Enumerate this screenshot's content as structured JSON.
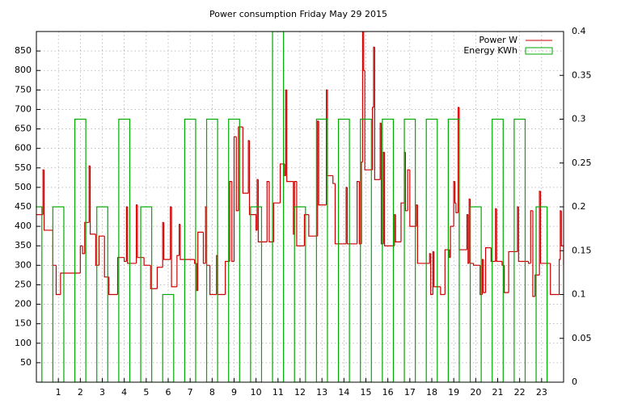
{
  "chart_data": {
    "type": "step",
    "title": "Power consumption Friday May 29 2015",
    "xlim": [
      0,
      24
    ],
    "xticks": [
      1,
      2,
      3,
      4,
      5,
      6,
      7,
      8,
      9,
      10,
      11,
      12,
      13,
      14,
      15,
      16,
      17,
      18,
      19,
      20,
      21,
      22,
      23
    ],
    "ylim": [
      0,
      900
    ],
    "yticks": [
      50,
      100,
      150,
      200,
      250,
      300,
      350,
      400,
      450,
      500,
      550,
      600,
      650,
      700,
      750,
      800,
      850
    ],
    "y2lim": [
      0,
      0.4
    ],
    "y2ticks": [
      0,
      0.05,
      0.1,
      0.15,
      0.2,
      0.25,
      0.3,
      0.35,
      0.4
    ],
    "grid": true,
    "legend": "top-right",
    "series": [
      {
        "name": "Power W",
        "color": "#cc0000",
        "style": "steps",
        "x": [
          0,
          0.3,
          0.35,
          0.75,
          0.9,
          1.1,
          2.0,
          2.1,
          2.2,
          2.4,
          2.45,
          2.7,
          2.85,
          3.1,
          3.3,
          3.7,
          4.0,
          4.1,
          4.15,
          4.55,
          4.6,
          4.9,
          5.2,
          5.5,
          5.75,
          5.8,
          6.1,
          6.15,
          6.4,
          6.5,
          6.55,
          7.2,
          7.3,
          7.35,
          7.6,
          7.7,
          7.75,
          7.9,
          8.2,
          8.25,
          8.6,
          8.8,
          8.9,
          9.0,
          9.1,
          9.2,
          9.4,
          9.65,
          9.7,
          10.0,
          10.05,
          10.1,
          10.5,
          10.6,
          10.8,
          11.1,
          11.3,
          11.35,
          11.4,
          11.7,
          11.75,
          11.85,
          12.2,
          12.4,
          12.8,
          12.85,
          13.2,
          13.25,
          13.5,
          13.6,
          14.1,
          14.15,
          14.6,
          14.7,
          14.8,
          14.85,
          14.9,
          14.95,
          15.3,
          15.35,
          15.4,
          15.65,
          15.7,
          15.8,
          15.85,
          16.3,
          16.35,
          16.6,
          16.75,
          16.8,
          16.9,
          17.0,
          17.3,
          17.35,
          17.9,
          17.95,
          18.05,
          18.1,
          18.4,
          18.6,
          18.8,
          18.85,
          19.0,
          19.05,
          19.1,
          19.2,
          19.25,
          19.6,
          19.65,
          19.7,
          19.75,
          19.9,
          20.2,
          20.3,
          20.35,
          20.45,
          20.7,
          20.9,
          20.95,
          21.2,
          21.3,
          21.5,
          21.9,
          21.95,
          22.4,
          22.5,
          22.6,
          22.7,
          22.9,
          22.95,
          23.4,
          23.8,
          23.85,
          23.9,
          24
        ],
        "values": [
          430,
          545,
          390,
          300,
          225,
          280,
          350,
          330,
          410,
          555,
          380,
          300,
          375,
          270,
          225,
          320,
          310,
          450,
          305,
          455,
          320,
          300,
          240,
          295,
          410,
          315,
          450,
          245,
          325,
          405,
          315,
          305,
          235,
          385,
          305,
          450,
          300,
          225,
          325,
          225,
          310,
          515,
          310,
          630,
          440,
          655,
          485,
          620,
          430,
          390,
          520,
          360,
          515,
          360,
          460,
          560,
          530,
          750,
          515,
          380,
          515,
          350,
          430,
          375,
          670,
          455,
          750,
          530,
          510,
          355,
          500,
          355,
          515,
          355,
          565,
          900,
          800,
          545,
          705,
          860,
          520,
          665,
          355,
          590,
          350,
          430,
          360,
          460,
          590,
          440,
          545,
          400,
          455,
          305,
          330,
          225,
          335,
          245,
          225,
          340,
          320,
          400,
          515,
          460,
          435,
          705,
          340,
          430,
          305,
          470,
          305,
          300,
          225,
          315,
          230,
          345,
          310,
          445,
          310,
          300,
          230,
          335,
          450,
          310,
          305,
          440,
          220,
          275,
          490,
          305,
          225,
          315,
          440,
          350,
          300
        ]
      },
      {
        "name": "Energy KWh",
        "color": "#00aa00",
        "style": "boxes",
        "axis": "y2",
        "x": [
          0,
          1,
          2,
          3,
          4,
          5,
          6,
          7,
          8,
          9,
          10,
          11,
          12,
          13,
          14,
          15,
          16,
          17,
          18,
          19,
          20,
          21,
          22,
          23
        ],
        "values": [
          0.2,
          0.2,
          0.3,
          0.2,
          0.3,
          0.2,
          0.1,
          0.3,
          0.3,
          0.3,
          0.2,
          0.4,
          0.2,
          0.3,
          0.3,
          0.3,
          0.3,
          0.3,
          0.3,
          0.3,
          0.2,
          0.3,
          0.3,
          0.2
        ]
      }
    ]
  }
}
